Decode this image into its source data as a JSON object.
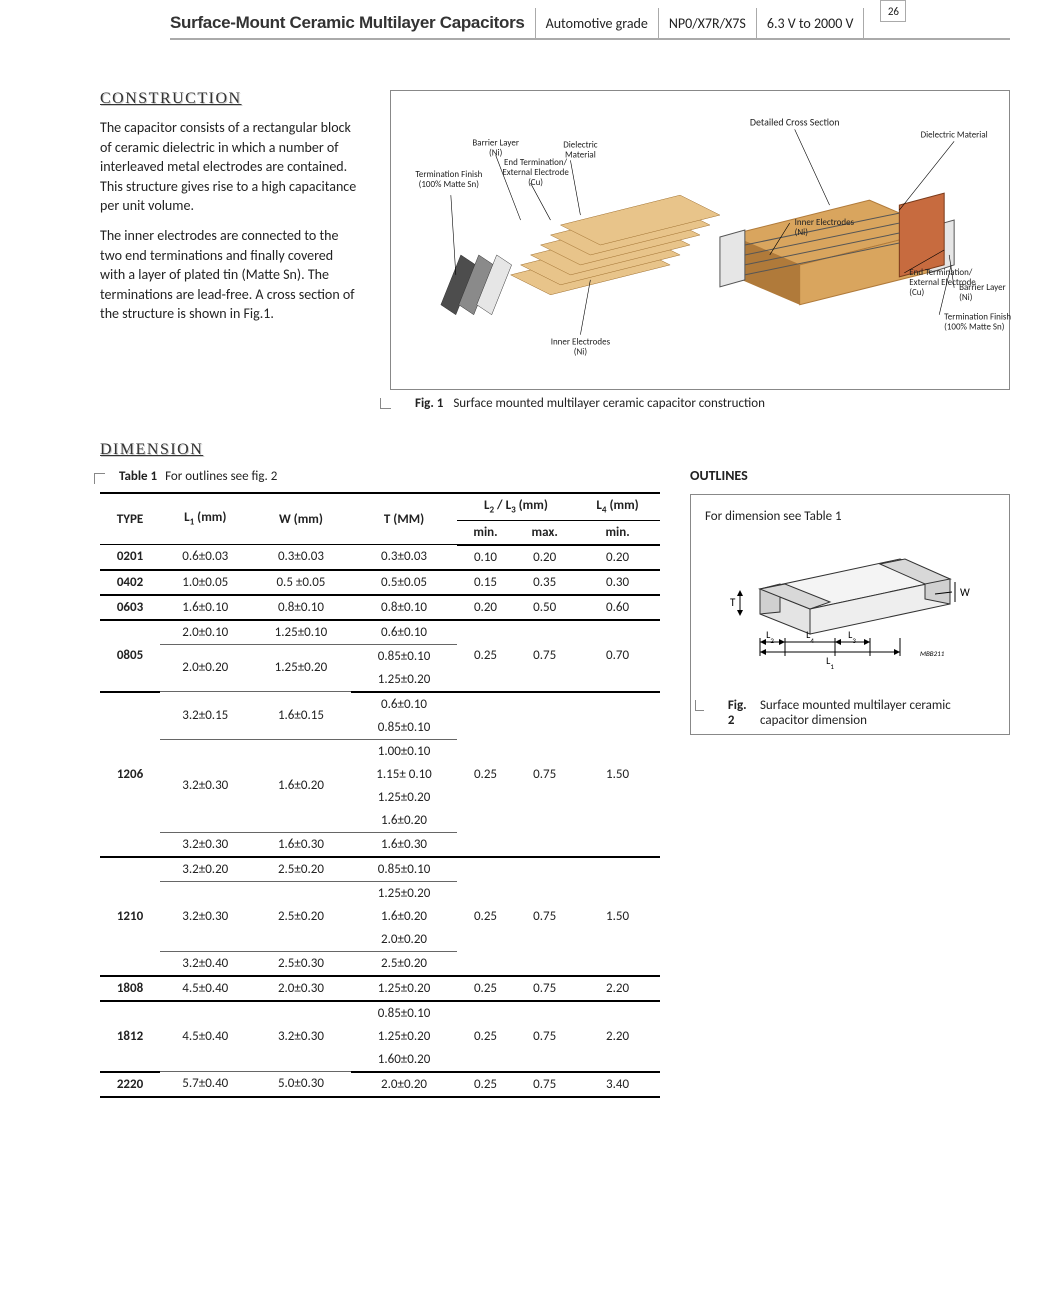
{
  "header": {
    "title": "Surface-Mount Ceramic Multilayer Capacitors",
    "segments": [
      "Automotive grade",
      "NP0/X7R/X7S",
      "6.3 V to 2000 V"
    ],
    "page_number": "26"
  },
  "sections": {
    "construction": {
      "heading": "CONSTRUCTION",
      "paras": [
        "The capacitor consists of a rectangular block of ceramic dielectric in which a number of interleaved metal electrodes are contained. This structure gives rise to a high capacitance per unit volume.",
        "The inner electrodes are connected to the two end terminations and finally covered with a layer of plated tin (Matte Sn). The terminations are lead-free. A cross section of the structure is shown in Fig.1."
      ]
    },
    "dimension": {
      "heading": "DIMENSION"
    },
    "outlines": {
      "heading": "OUTLINES"
    }
  },
  "fig1": {
    "caption_num": "Fig. 1",
    "caption_text": "Surface mounted multilayer ceramic capacitor construction",
    "labels": {
      "detailed_cross": "Detailed Cross Section",
      "dielectric_mat": "Dielectric Material",
      "barrier_layer": "Barrier Layer\n(Ni)",
      "dielectric": "Dielectric\nMaterial",
      "term_finish": "Termination Finish\n(100% Matte Sn)",
      "end_term": "End Termination/\nExternal Electrode\n(Cu)",
      "inner_el_top": "Inner Electrodes\n(Ni)",
      "inner_el_bot": "Inner Electrodes\n(Ni)",
      "end_term2": "End Termination/\nExternal Electrode\n(Cu)",
      "barrier_layer2": "Barrier Layer\n(Ni)",
      "term_finish2": "Termination Finish\n(100% Matte Sn)"
    },
    "colors": {
      "body": "#d9a55e",
      "body_dark": "#b07a3a",
      "end_light": "#e6e6e6",
      "end_mid": "#8a8a8a",
      "end_dark": "#4d4d4d",
      "copper": "#c76b3f",
      "sheet": "#e8c48a"
    }
  },
  "fig2": {
    "caption_num": "Fig. 2",
    "caption_text": "Surface mounted multilayer ceramic capacitor dimension",
    "note": "For dimension see Table 1",
    "mbb": "MBB211",
    "labels": {
      "T": "T",
      "W": "W",
      "L1": "L1",
      "L2": "L2",
      "L3": "L3",
      "L4": "L4"
    }
  },
  "table": {
    "caption_num": "Table 1",
    "caption_text": "For outlines see fig. 2",
    "headers": {
      "type": "TYPE",
      "l1": "L₁ (mm)",
      "w": "W (mm)",
      "t": "T (MM)",
      "l23": "L₂ / L₃ (mm)",
      "l4": "L₄ (mm)",
      "min": "min.",
      "max": "max.",
      "min2": "min."
    },
    "groups": [
      {
        "type": "0201",
        "l23min": "0.10",
        "l23max": "0.20",
        "l4min": "0.20",
        "subs": [
          {
            "l1": "0.6±0.03",
            "w": "0.3±0.03",
            "t": [
              "0.3±0.03"
            ]
          }
        ]
      },
      {
        "type": "0402",
        "l23min": "0.15",
        "l23max": "0.35",
        "l4min": "0.30",
        "subs": [
          {
            "l1": "1.0±0.05",
            "w": "0.5 ±0.05",
            "t": [
              "0.5±0.05"
            ]
          }
        ]
      },
      {
        "type": "0603",
        "l23min": "0.20",
        "l23max": "0.50",
        "l4min": "0.60",
        "subs": [
          {
            "l1": "1.6±0.10",
            "w": "0.8±0.10",
            "t": [
              "0.8±0.10"
            ]
          }
        ]
      },
      {
        "type": "0805",
        "l23min": "0.25",
        "l23max": "0.75",
        "l4min": "0.70",
        "subs": [
          {
            "l1": "2.0±0.10",
            "w": "1.25±0.10",
            "t": [
              "0.6±0.10"
            ]
          },
          {
            "l1": "2.0±0.20",
            "w": "1.25±0.20",
            "t": [
              "0.85±0.10",
              "1.25±0.20"
            ]
          }
        ]
      },
      {
        "type": "1206",
        "l23min": "0.25",
        "l23max": "0.75",
        "l4min": "1.50",
        "subs": [
          {
            "l1": "3.2±0.15",
            "w": "1.6±0.15",
            "t": [
              "0.6±0.10",
              "0.85±0.10"
            ]
          },
          {
            "l1": "3.2±0.30",
            "w": "1.6±0.20",
            "t": [
              "1.00±0.10",
              "1.15± 0.10",
              "1.25±0.20",
              "1.6±0.20"
            ]
          },
          {
            "l1": "3.2±0.30",
            "w": "1.6±0.30",
            "t": [
              "1.6±0.30"
            ]
          }
        ]
      },
      {
        "type": "1210",
        "l23min": "0.25",
        "l23max": "0.75",
        "l4min": "1.50",
        "subs": [
          {
            "l1": "3.2±0.20",
            "w": "2.5±0.20",
            "t": [
              "0.85±0.10"
            ]
          },
          {
            "l1": "3.2±0.30",
            "w": "2.5±0.20",
            "t": [
              "1.25±0.20",
              "1.6±0.20",
              "2.0±0.20"
            ]
          },
          {
            "l1": "3.2±0.40",
            "w": "2.5±0.30",
            "t": [
              "2.5±0.20"
            ]
          }
        ]
      },
      {
        "type": "1808",
        "l23min": "0.25",
        "l23max": "0.75",
        "l4min": "2.20",
        "subs": [
          {
            "l1": "4.5±0.40",
            "w": "2.0±0.30",
            "t": [
              "1.25±0.20"
            ]
          }
        ]
      },
      {
        "type": "1812",
        "l23min": "0.25",
        "l23max": "0.75",
        "l4min": "2.20",
        "subs": [
          {
            "l1": "4.5±0.40",
            "w": "3.2±0.30",
            "t": [
              "0.85±0.10",
              "1.25±0.20",
              "1.60±0.20"
            ]
          }
        ]
      },
      {
        "type": "2220",
        "l23min": "0.25",
        "l23max": "0.75",
        "l4min": "3.40",
        "subs": [
          {
            "l1": "5.7±0.40",
            "w": "5.0±0.30",
            "t": [
              "2.0±0.20"
            ]
          }
        ]
      }
    ]
  }
}
